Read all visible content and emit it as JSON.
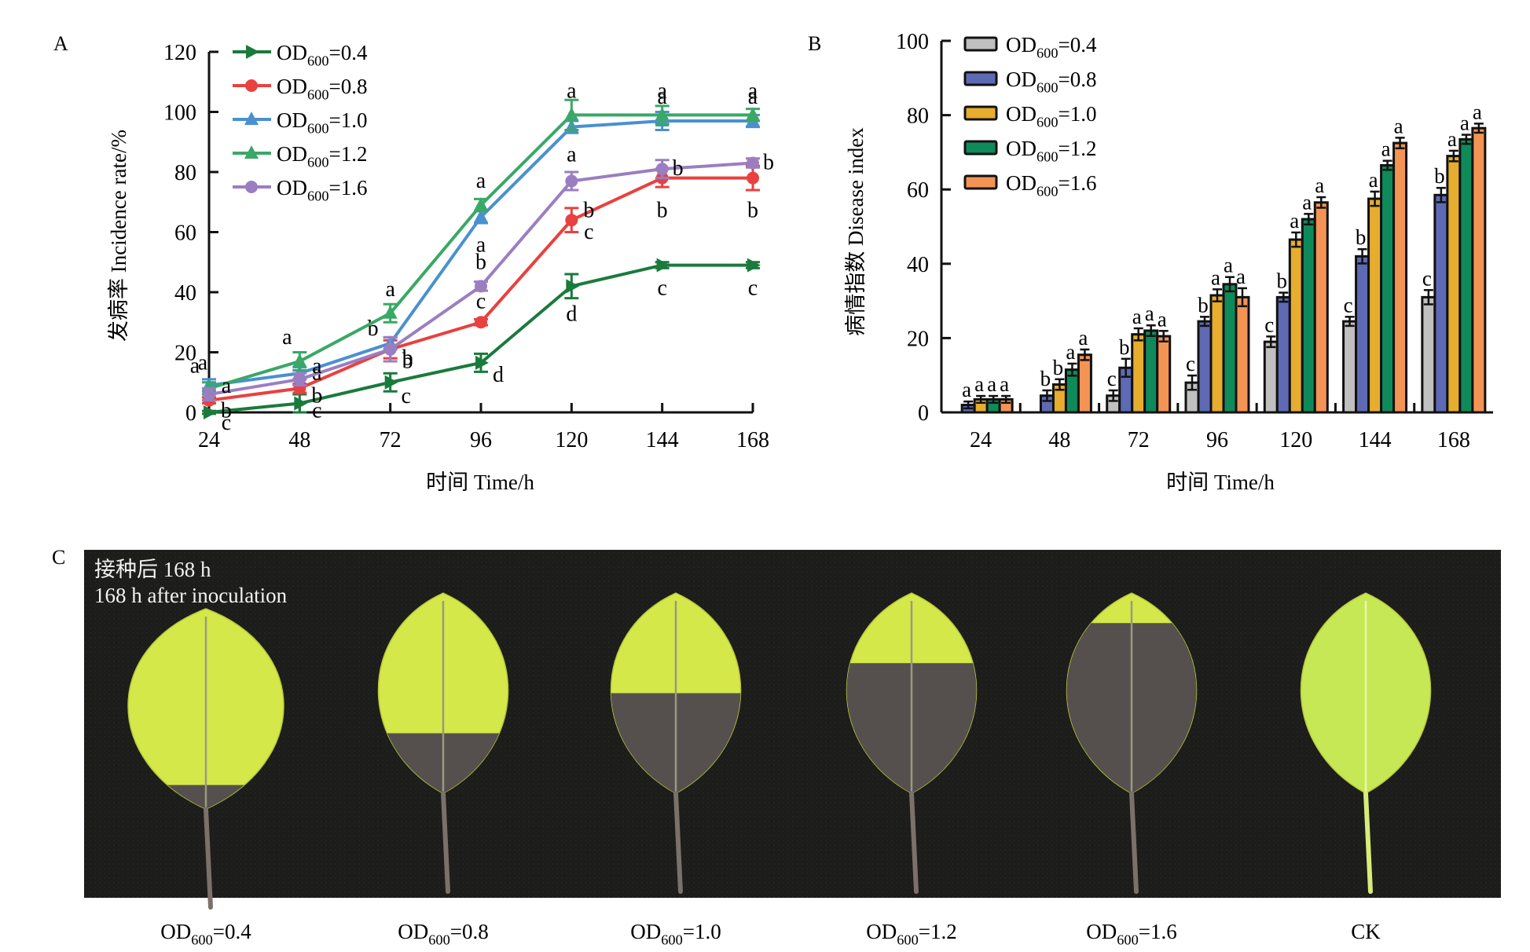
{
  "panel_labels": {
    "a": "A",
    "b": "B",
    "c": "C"
  },
  "chart_data": [
    {
      "id": "A",
      "type": "line",
      "title": "",
      "xlabel": "时间 Time/h",
      "ylabel": "发病率 Incidence rate/%",
      "x": [
        24,
        48,
        72,
        96,
        120,
        144,
        168
      ],
      "x_ticks": [
        "24",
        "48",
        "72",
        "96",
        "120",
        "144",
        "168"
      ],
      "ylim": [
        0,
        120
      ],
      "y_ticks": [
        "0",
        "20",
        "40",
        "60",
        "80",
        "100",
        "120"
      ],
      "y_tick_values": [
        0,
        20,
        40,
        60,
        80,
        100,
        120
      ],
      "grid": false,
      "legend_position": "top-left",
      "series": [
        {
          "name": "OD600=0.4",
          "label_main": "OD",
          "label_sub": "600",
          "label_tail": "=0.4",
          "color": "#1a7a3c",
          "marker": "triangle-right",
          "values": [
            0,
            3,
            10,
            16.5,
            42,
            49,
            49
          ],
          "errors": [
            0.5,
            3,
            3,
            3,
            4,
            1,
            1
          ],
          "letters": [
            "c",
            "c",
            "c",
            "d",
            "d",
            "c",
            "c"
          ]
        },
        {
          "name": "OD600=0.8",
          "label_main": "OD",
          "label_sub": "600",
          "label_tail": "=0.8",
          "color": "#e8413f",
          "marker": "circle",
          "values": [
            4,
            8,
            21,
            30,
            64,
            78,
            78
          ],
          "errors": [
            1,
            1.5,
            3,
            1,
            4,
            3,
            4
          ],
          "letters": [
            "b",
            "b",
            "b",
            "c",
            "c",
            "b",
            "b"
          ]
        },
        {
          "name": "OD600=1.0",
          "label_main": "OD",
          "label_sub": "600",
          "label_tail": "=1.0",
          "color": "#4a90d0",
          "marker": "triangle-up",
          "values": [
            9,
            13,
            23,
            65,
            95,
            97,
            97
          ],
          "errors": [
            2,
            2,
            2,
            2,
            2,
            3,
            2
          ],
          "letters": [
            "a",
            "a",
            "b",
            "a",
            "a",
            "a",
            "a"
          ]
        },
        {
          "name": "OD600=1.2",
          "label_main": "OD",
          "label_sub": "600",
          "label_tail": "=1.2",
          "color": "#3aa866",
          "marker": "triangle-up",
          "values": [
            8,
            17,
            33,
            69,
            99,
            99,
            99
          ],
          "errors": [
            2,
            3,
            3,
            2,
            5,
            3,
            2
          ],
          "letters": [
            "a",
            "a",
            "a",
            "a",
            "a",
            "a",
            "a"
          ]
        },
        {
          "name": "OD600=1.6",
          "label_main": "OD",
          "label_sub": "600",
          "label_tail": "=1.6",
          "color": "#9b7ec2",
          "marker": "circle",
          "values": [
            6,
            11,
            21,
            42,
            77,
            81,
            83
          ],
          "errors": [
            2,
            2,
            4,
            1.5,
            3,
            3,
            1.5
          ],
          "letters": [
            "a",
            "a",
            "b",
            "b",
            "b",
            "b",
            "b"
          ]
        }
      ]
    },
    {
      "id": "B",
      "type": "bar",
      "title": "",
      "xlabel": "时间 Time/h",
      "ylabel": "病情指数 Disease index",
      "categories": [
        "24",
        "48",
        "72",
        "96",
        "120",
        "144",
        "168"
      ],
      "ylim": [
        0,
        100
      ],
      "y_ticks": [
        "0",
        "20",
        "40",
        "60",
        "80",
        "100"
      ],
      "y_tick_values": [
        0,
        20,
        40,
        60,
        80,
        100
      ],
      "grid": false,
      "legend_position": "top-left",
      "series": [
        {
          "name": "OD600=0.4",
          "label_main": "OD",
          "label_sub": "600",
          "label_tail": "=0.4",
          "color": "#c0c0c0",
          "values": [
            0,
            0,
            4.5,
            8,
            19,
            24.5,
            31
          ],
          "errors": [
            0,
            0,
            1,
            1.5,
            1,
            0.8,
            1.5
          ],
          "letters": [
            "",
            "",
            "c",
            "c",
            "c",
            "c",
            "c"
          ]
        },
        {
          "name": "OD600=0.8",
          "label_main": "OD",
          "label_sub": "600",
          "label_tail": "=0.8",
          "color": "#5e6ab4",
          "values": [
            2,
            4.5,
            12,
            24.5,
            31,
            42,
            58.5
          ],
          "errors": [
            0.5,
            1,
            2,
            0.8,
            0.8,
            1.5,
            1.5
          ],
          "letters": [
            "a",
            "b",
            "b",
            "b",
            "b",
            "b",
            "b"
          ]
        },
        {
          "name": "OD600=1.0",
          "label_main": "OD",
          "label_sub": "600",
          "label_tail": "=1.0",
          "color": "#e6ad2e",
          "values": [
            3.5,
            7.5,
            21,
            31.5,
            46.5,
            57.5,
            69
          ],
          "errors": [
            0.5,
            1,
            1.2,
            1.2,
            1.5,
            1.5,
            1
          ],
          "letters": [
            "a",
            "b",
            "a",
            "a",
            "a",
            "a",
            "a"
          ]
        },
        {
          "name": "OD600=1.2",
          "label_main": "OD",
          "label_sub": "600",
          "label_tail": "=1.2",
          "color": "#0f8a5a",
          "values": [
            3.5,
            11.5,
            22,
            34.5,
            52,
            66.5,
            73.5
          ],
          "errors": [
            0.5,
            1.2,
            1,
            1.5,
            1,
            0.8,
            0.8
          ],
          "letters": [
            "a",
            "a",
            "a",
            "a",
            "a",
            "a",
            "a"
          ]
        },
        {
          "name": "OD600=1.6",
          "label_main": "OD",
          "label_sub": "600",
          "label_tail": "=1.6",
          "color": "#f39455",
          "values": [
            3.5,
            15.5,
            20.5,
            31,
            56.5,
            72.5,
            76.5
          ],
          "errors": [
            0.5,
            1,
            1,
            2,
            1,
            1,
            0.8
          ],
          "letters": [
            "a",
            "a",
            "a",
            "a",
            "a",
            "a",
            "a"
          ]
        }
      ]
    }
  ],
  "photo": {
    "caption_cn": "接种后 168 h",
    "caption_en": "168 h after inoculation",
    "leaves": [
      {
        "label_main": "OD",
        "label_sub": "600",
        "label_tail": "=0.4",
        "lesion": 0.12
      },
      {
        "label_main": "OD",
        "label_sub": "600",
        "label_tail": "=0.8",
        "lesion": 0.3
      },
      {
        "label_main": "OD",
        "label_sub": "600",
        "label_tail": "=1.0",
        "lesion": 0.5
      },
      {
        "label_main": "OD",
        "label_sub": "600",
        "label_tail": "=1.2",
        "lesion": 0.65
      },
      {
        "label_main": "OD",
        "label_sub": "600",
        "label_tail": "=1.6",
        "lesion": 0.85
      },
      {
        "label_main": "CK",
        "label_sub": "",
        "label_tail": "",
        "lesion": 0
      }
    ]
  }
}
